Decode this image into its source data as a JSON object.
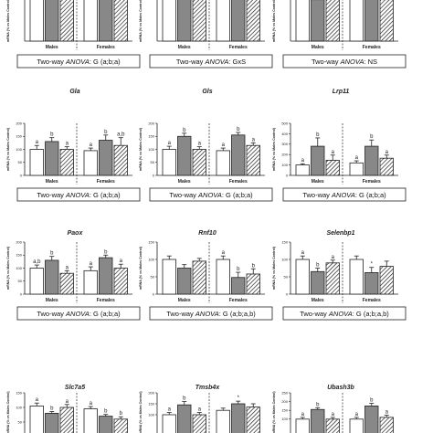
{
  "chart_data": [
    {
      "type": "bar",
      "title": "",
      "ylabel": "mRNA (% vs Males Control)",
      "groups": [
        "Males",
        "Females"
      ],
      "ylim": [
        0,
        150
      ],
      "yticks": [],
      "values": [
        [
          100,
          125,
          95
        ],
        [
          90,
          150,
          130
        ]
      ],
      "errors": [
        [
          10,
          12,
          10
        ],
        [
          10,
          15,
          15
        ]
      ],
      "labels": [
        [
          "",
          "",
          ""
        ],
        [
          "a",
          "",
          ""
        ]
      ],
      "anova_prefix": "Two-way ",
      "anova_word": "ANOVA",
      "anova_suffix": ": G (a;b;a)",
      "crop": "top"
    },
    {
      "type": "bar",
      "title": "",
      "ylabel": "mRNA (% vs Males Control)",
      "groups": [
        "Males",
        "Females"
      ],
      "ylim": [
        0,
        150
      ],
      "yticks": [],
      "values": [
        [
          100,
          125,
          110
        ],
        [
          90,
          130,
          115
        ]
      ],
      "errors": [
        [
          10,
          12,
          10
        ],
        [
          10,
          12,
          12
        ]
      ],
      "labels": [
        [
          "",
          "",
          ""
        ],
        [
          "",
          "",
          ""
        ]
      ],
      "anova_prefix": "Two-way ",
      "anova_word": "ANOVA",
      "anova_suffix": ": GxS",
      "crop": "top"
    },
    {
      "type": "bar",
      "title": "",
      "ylabel": "mRNA (% vs Males Control)",
      "groups": [
        "Males",
        "Females"
      ],
      "ylim": [
        0,
        150
      ],
      "yticks": [],
      "values": [
        [
          100,
          80,
          90
        ],
        [
          95,
          90,
          80
        ]
      ],
      "errors": [
        [
          10,
          6,
          6
        ],
        [
          10,
          10,
          10
        ]
      ],
      "labels": [
        [
          "",
          "b",
          "a"
        ],
        [
          "",
          "",
          ""
        ]
      ],
      "anova_prefix": "Two-way ",
      "anova_word": "ANOVA",
      "anova_suffix": ": NS",
      "crop": "top"
    },
    {
      "type": "bar",
      "title": "Gla",
      "ylabel": "mRNA (% vs Males Control)",
      "groups": [
        "Males",
        "Females"
      ],
      "ylim": [
        0,
        200
      ],
      "yticks": [
        "0",
        "50",
        "100",
        "150",
        "200"
      ],
      "values": [
        [
          100,
          130,
          100
        ],
        [
          95,
          135,
          115
        ]
      ],
      "errors": [
        [
          15,
          15,
          10
        ],
        [
          10,
          20,
          30
        ]
      ],
      "labels": [
        [
          "a",
          "b",
          "a"
        ],
        [
          "a",
          "b",
          "a,b"
        ]
      ],
      "anova_prefix": "Two-way ",
      "anova_word": "ANOVA",
      "anova_suffix": ": G (a;b;a)"
    },
    {
      "type": "bar",
      "title": "Gls",
      "ylabel": "mRNA (% vs Males Control)",
      "groups": [
        "Males",
        "Females"
      ],
      "ylim": [
        0,
        200
      ],
      "yticks": [
        "0",
        "50",
        "100",
        "150",
        "200"
      ],
      "values": [
        [
          100,
          150,
          100
        ],
        [
          95,
          155,
          115
        ]
      ],
      "errors": [
        [
          12,
          12,
          10
        ],
        [
          10,
          10,
          10
        ]
      ],
      "labels": [
        [
          "a",
          "b",
          "a"
        ],
        [
          "a",
          "b",
          "a"
        ]
      ],
      "anova_prefix": "Two-way ",
      "anova_word": "ANOVA",
      "anova_suffix": ": G (a;b;a)"
    },
    {
      "type": "bar",
      "title": "Lrp11",
      "ylabel": "mRNA (% vs Males Control)",
      "groups": [
        "Males",
        "Females"
      ],
      "ylim": [
        0,
        500
      ],
      "yticks": [
        "0",
        "100",
        "200",
        "300",
        "400",
        "500"
      ],
      "values": [
        [
          100,
          280,
          145
        ],
        [
          120,
          280,
          165
        ]
      ],
      "errors": [
        [
          12,
          80,
          50
        ],
        [
          20,
          60,
          30
        ]
      ],
      "labels": [
        [
          "a",
          "b",
          "a"
        ],
        [
          "a",
          "b",
          "a"
        ]
      ],
      "anova_prefix": "Two-way ",
      "anova_word": "ANOVA",
      "anova_suffix": ": G (a;b;a)"
    },
    {
      "type": "bar",
      "title": "Paox",
      "ylabel": "mRNA (% vs Males Control)",
      "groups": [
        "Males",
        "Females"
      ],
      "ylim": [
        0,
        200
      ],
      "yticks": [
        "0",
        "50",
        "100",
        "150",
        "200"
      ],
      "values": [
        [
          100,
          130,
          80
        ],
        [
          90,
          140,
          100
        ]
      ],
      "errors": [
        [
          12,
          15,
          10
        ],
        [
          15,
          10,
          15
        ]
      ],
      "labels": [
        [
          "a,b",
          "b",
          "a"
        ],
        [
          "a",
          "b",
          "a"
        ]
      ],
      "anova_prefix": "Two-way ",
      "anova_word": "ANOVA",
      "anova_suffix": ": G (a;b;a)"
    },
    {
      "type": "bar",
      "title": "Rnf10",
      "ylabel": "mRNA (% vs Males Control)",
      "groups": [
        "Males",
        "Females"
      ],
      "ylim": [
        0,
        150
      ],
      "yticks": [
        "0",
        "50",
        "100",
        "150"
      ],
      "values": [
        [
          100,
          75,
          95
        ],
        [
          100,
          48,
          58
        ]
      ],
      "errors": [
        [
          10,
          10,
          8
        ],
        [
          10,
          15,
          15
        ]
      ],
      "labels": [
        [
          "",
          "",
          ""
        ],
        [
          "a",
          "b",
          "b"
        ]
      ],
      "anova_prefix": "Two-way ",
      "anova_word": "ANOVA",
      "anova_suffix": ": G (a;b;a,b)"
    },
    {
      "type": "bar",
      "title": "Selenbp1",
      "ylabel": "mRNA (% vs Males Control)",
      "groups": [
        "Males",
        "Females"
      ],
      "ylim": [
        0,
        150
      ],
      "yticks": [
        "0",
        "50",
        "100",
        "150"
      ],
      "values": [
        [
          100,
          65,
          90
        ],
        [
          100,
          62,
          80
        ]
      ],
      "errors": [
        [
          10,
          10,
          8
        ],
        [
          10,
          15,
          15
        ]
      ],
      "labels": [
        [
          "a",
          "b",
          "a"
        ],
        [
          "",
          "*",
          ""
        ]
      ],
      "anova_prefix": "Two-way ",
      "anova_word": "ANOVA",
      "anova_suffix": ": G (a;b;a,b)"
    },
    {
      "type": "bar",
      "title": "Slc7a5",
      "ylabel": "mRNA (% vs Males Control)",
      "groups": [
        "Males",
        "Females"
      ],
      "ylim": [
        0,
        150
      ],
      "yticks": [
        "50",
        "100",
        "150"
      ],
      "values": [
        [
          105,
          80,
          100
        ],
        [
          95,
          70,
          60
        ]
      ],
      "errors": [
        [
          10,
          6,
          10
        ],
        [
          8,
          6,
          8
        ]
      ],
      "labels": [
        [
          "a",
          "b",
          "a"
        ],
        [
          "a",
          "b",
          "b"
        ]
      ],
      "anova_prefix": "",
      "anova_word": "",
      "anova_suffix": "",
      "crop": "bottom"
    },
    {
      "type": "bar",
      "title": "Tmsb4x",
      "ylabel": "mRNA (% vs Males Control)",
      "groups": [
        "Males",
        "Females"
      ],
      "ylim": [
        0,
        200
      ],
      "yticks": [
        "100",
        "150",
        "200"
      ],
      "values": [
        [
          100,
          145,
          100
        ],
        [
          120,
          150,
          135
        ]
      ],
      "errors": [
        [
          10,
          15,
          10
        ],
        [
          10,
          12,
          15
        ]
      ],
      "labels": [
        [
          "a",
          "b",
          "a"
        ],
        [
          "",
          "*",
          ""
        ]
      ],
      "anova_prefix": "",
      "anova_word": "",
      "anova_suffix": "",
      "crop": "bottom"
    },
    {
      "type": "bar",
      "title": "Ubash3b",
      "ylabel": "mRNA (% vs Males Control)",
      "groups": [
        "Males",
        "Females"
      ],
      "ylim": [
        0,
        250
      ],
      "yticks": [
        "100",
        "150",
        "200",
        "250"
      ],
      "values": [
        [
          100,
          155,
          100
        ],
        [
          100,
          175,
          110
        ]
      ],
      "errors": [
        [
          10,
          10,
          10
        ],
        [
          10,
          15,
          12
        ]
      ],
      "labels": [
        [
          "a",
          "b",
          "a"
        ],
        [
          "a",
          "b",
          "a"
        ]
      ],
      "anova_prefix": "",
      "anova_word": "",
      "anova_suffix": "",
      "crop": "bottom"
    }
  ]
}
